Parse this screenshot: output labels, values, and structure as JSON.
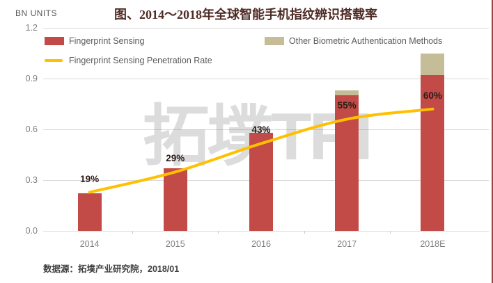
{
  "header": {
    "title": "图、2014～2018年全球智能手机指纹辨识搭载率",
    "y_axis_title": "BN UNITS"
  },
  "legend": [
    {
      "label": "Fingerprint Sensing",
      "swatch": "box",
      "color": "#c24b47"
    },
    {
      "label": "Other Biometric Authentication Methods",
      "swatch": "box",
      "color": "#c4bd97"
    },
    {
      "label": "Fingerprint Sensing Penetration Rate",
      "swatch": "line",
      "color": "#ffc000"
    }
  ],
  "chart_data": {
    "type": "bar",
    "categories": [
      "2014",
      "2015",
      "2016",
      "2017",
      "2018E"
    ],
    "series": [
      {
        "name": "Fingerprint Sensing",
        "type": "bar",
        "color": "#c24b47",
        "values": [
          0.22,
          0.37,
          0.58,
          0.8,
          0.92
        ]
      },
      {
        "name": "Other Biometric Authentication Methods",
        "type": "bar",
        "stacked_on": "Fingerprint Sensing",
        "color": "#c4bd97",
        "values": [
          0,
          0,
          0,
          0.03,
          0.13
        ]
      },
      {
        "name": "Fingerprint Sensing Penetration Rate",
        "type": "line",
        "color": "#ffc000",
        "axis": "secondary",
        "values_percent": [
          19,
          29,
          43,
          55,
          60
        ]
      }
    ],
    "point_labels": [
      "19%",
      "29%",
      "43%",
      "55%",
      "60%"
    ],
    "title": "图、2014～2018年全球智能手机指纹辨识搭载率",
    "xlabel": "",
    "ylabel": "BN UNITS",
    "ylim": [
      0,
      1.2
    ],
    "y_ticks": [
      0,
      0.3,
      0.6,
      0.9,
      1.2
    ],
    "y_tick_labels": [
      "0.0",
      "0.3",
      "0.6",
      "0.9",
      "1.2"
    ],
    "secondary_ylim_percent": [
      0,
      100
    ],
    "grid": true,
    "legend_position": "top"
  },
  "watermark": {
    "text": "拓墣TRI"
  },
  "source": {
    "text": "数据源：拓墣产业研究院，2018/01"
  },
  "colors": {
    "bar_red": "#c24b47",
    "bar_tan": "#c4bd97",
    "line_yellow": "#ffc000",
    "title_text": "#4f2b25",
    "axis_text": "#7f7f7f",
    "legend_text": "#595959",
    "gridline": "#d9d9d9",
    "right_border": "#a04341"
  }
}
